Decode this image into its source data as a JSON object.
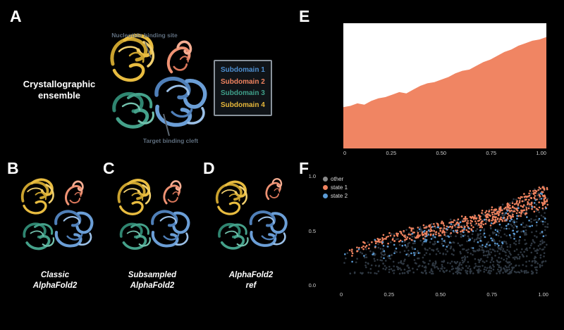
{
  "figure": {
    "panel_a": {
      "letter": "A",
      "side_label_line1": "Crystallographic",
      "side_label_line2": "ensemble",
      "annotation_top": "Nucleotide binding site",
      "annotation_bottom": "Target binding cleft",
      "legend": {
        "items": [
          {
            "label": "Subdomain 1",
            "color": "#4f8fd0"
          },
          {
            "label": "Subdomain 2",
            "color": "#f0835f"
          },
          {
            "label": "Subdomain 3",
            "color": "#3fa08a"
          },
          {
            "label": "Subdomain 4",
            "color": "#e8b83a"
          }
        ]
      }
    },
    "panel_b": {
      "letter": "B",
      "caption_line1": "Classic",
      "caption_line2": "AlphaFold2"
    },
    "panel_c": {
      "letter": "C",
      "caption_line1": "Subsampled",
      "caption_line2": "AlphaFold2"
    },
    "panel_d": {
      "letter": "D",
      "caption_line1": "AlphaFold2",
      "caption_line2": "ref"
    },
    "panel_e": {
      "letter": "E"
    },
    "panel_f": {
      "letter": "F"
    }
  },
  "chart_data": [
    {
      "type": "area",
      "panel": "E",
      "title": "",
      "xlabel": "",
      "ylabel": "",
      "x_ticks": [
        "0",
        "0.25",
        "0.50",
        "0.75",
        "1.00"
      ],
      "ylim": [
        0,
        100
      ],
      "values": [
        33,
        34,
        36,
        35,
        38,
        40,
        41,
        43,
        45,
        44,
        47,
        50,
        52,
        53,
        55,
        57,
        60,
        62,
        63,
        66,
        69,
        71,
        74,
        77,
        79,
        82,
        84,
        86,
        87,
        89
      ],
      "color": "#f08563",
      "background": "#ffffff"
    },
    {
      "type": "scatter",
      "panel": "F",
      "title": "",
      "xlabel": "",
      "ylabel": "",
      "seed": 42,
      "x_ticks": [
        "0",
        "0.25",
        "0.50",
        "0.75",
        "1.00"
      ],
      "y_ticks": [
        "1.0",
        "0.5",
        "0.0"
      ],
      "legend": [
        {
          "label": "other",
          "color": "#8a8a8a"
        },
        {
          "label": "state 1",
          "color": "#f0835f"
        },
        {
          "label": "state 2",
          "color": "#5b9bd5"
        }
      ],
      "series": [
        {
          "name": "other",
          "color": "#2f3842",
          "count": 900,
          "mode": "low"
        },
        {
          "name": "state 1",
          "color": "#f0835f",
          "count": 480,
          "mode": "band"
        },
        {
          "name": "state 2",
          "color": "#5b9bd5",
          "count": 130,
          "mode": "mid"
        }
      ],
      "envelope": {
        "base": 0.2,
        "gain": 0.68
      }
    }
  ]
}
